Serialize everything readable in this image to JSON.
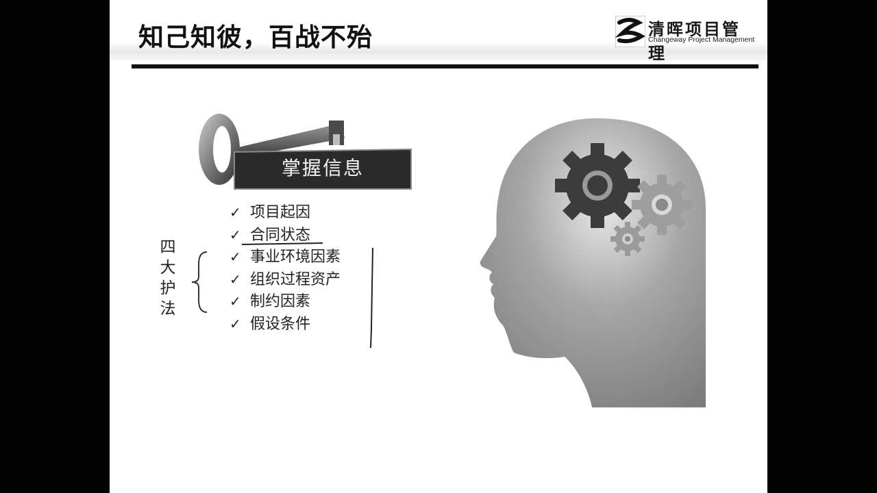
{
  "slide": {
    "title": "知己知彼，百战不殆",
    "logo": {
      "name_cn": "清晖项目管理",
      "name_en": "Changeway Project Management"
    },
    "key_banner_label": "掌握信息",
    "checklist": [
      "项目起因",
      "合同状态",
      "事业环境因素",
      "组织过程资产",
      "制约因素",
      "假设条件"
    ],
    "side_label": [
      "四",
      "大",
      "护",
      "法"
    ],
    "colors": {
      "background_side": "#040303",
      "slide_bg": "#ffffff",
      "banner_bg": "#2b2b2b",
      "head_gray": "#8a8a8a",
      "gear_dark": "#3c3c3c"
    },
    "icons": [
      "key-icon",
      "check-icon",
      "head-silhouette-icon",
      "gear-icon"
    ]
  }
}
